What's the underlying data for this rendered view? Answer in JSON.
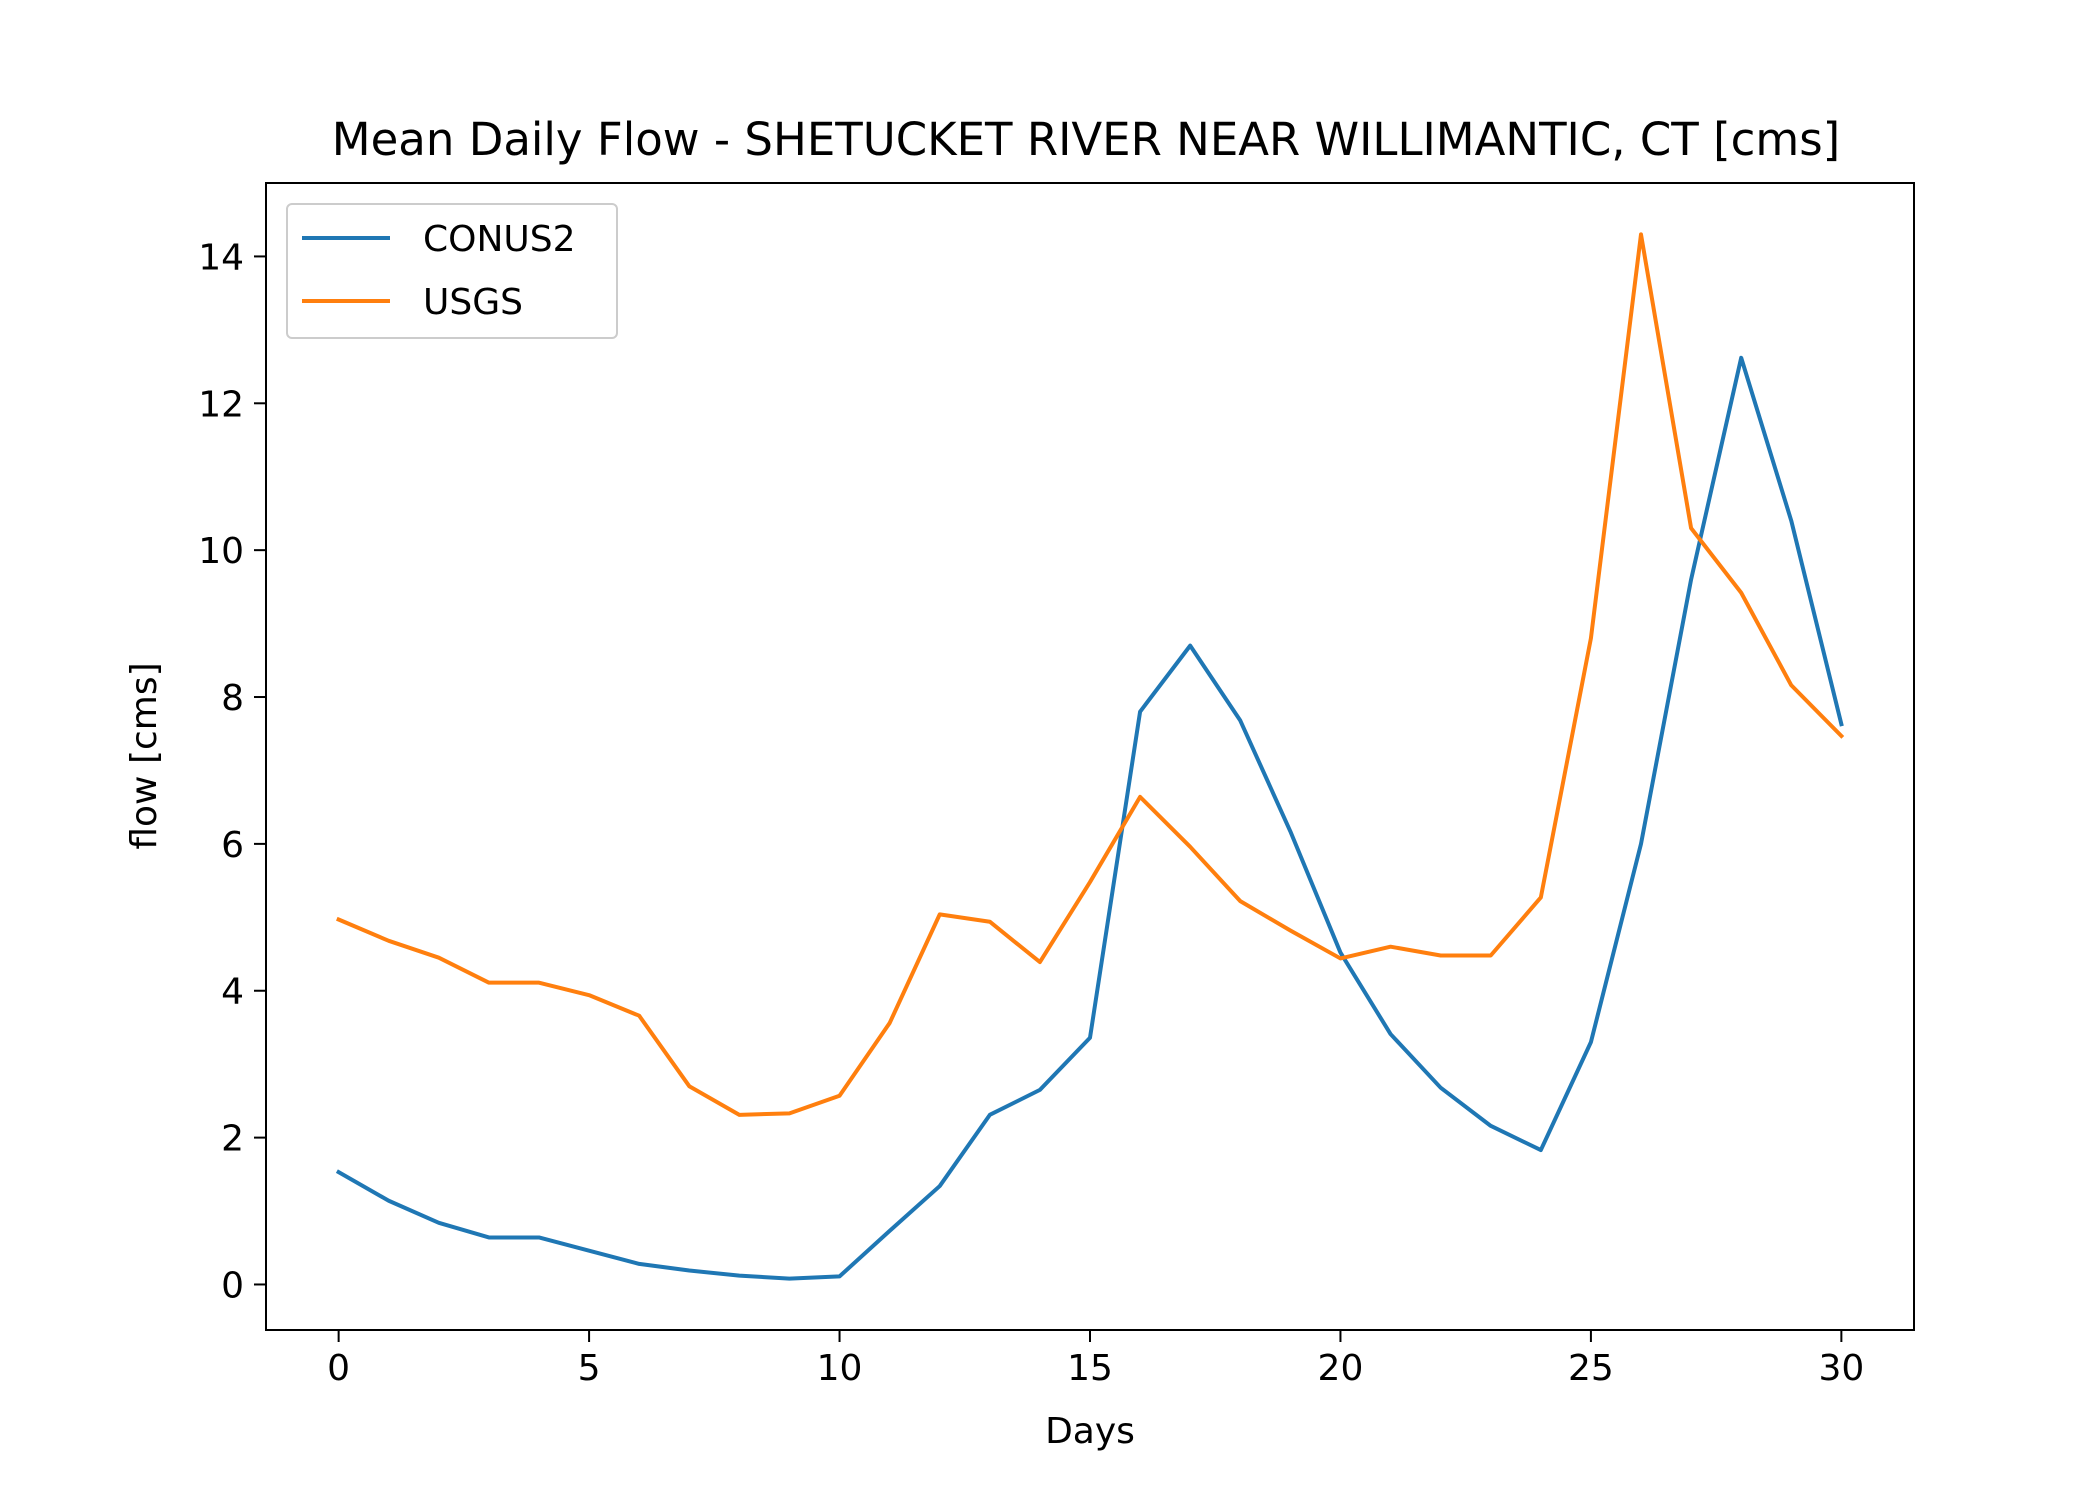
{
  "chart_data": {
    "type": "line",
    "title": "Mean Daily Flow - SHETUCKET RIVER NEAR WILLIMANTIC, CT [cms]",
    "xlabel": "Days",
    "ylabel": "flow [cms]",
    "xlim": [
      -1.45,
      31.45
    ],
    "ylim": [
      -0.62,
      15.0
    ],
    "xticks": [
      0,
      5,
      10,
      15,
      20,
      25,
      30
    ],
    "yticks": [
      0,
      2,
      4,
      6,
      8,
      10,
      12,
      14
    ],
    "grid": false,
    "legend_position": "top-left",
    "x": [
      0,
      1,
      2,
      3,
      4,
      5,
      6,
      7,
      8,
      9,
      10,
      11,
      12,
      13,
      14,
      15,
      16,
      17,
      18,
      19,
      20,
      21,
      22,
      23,
      24,
      25,
      26,
      27,
      28,
      29,
      30
    ],
    "series": [
      {
        "name": "CONUS2",
        "color": "#1f77b4",
        "values": [
          1.53,
          1.14,
          0.84,
          0.64,
          0.64,
          0.46,
          0.28,
          0.19,
          0.12,
          0.08,
          0.11,
          0.73,
          1.34,
          2.31,
          2.65,
          3.36,
          7.8,
          8.7,
          7.68,
          6.17,
          4.52,
          3.41,
          2.68,
          2.16,
          1.83,
          3.3,
          6.0,
          9.6,
          12.62,
          10.4,
          7.63
        ]
      },
      {
        "name": "USGS",
        "color": "#ff7f0e",
        "values": [
          4.97,
          4.68,
          4.45,
          4.11,
          4.11,
          3.94,
          3.66,
          2.7,
          2.31,
          2.33,
          2.57,
          3.56,
          5.04,
          4.94,
          4.39,
          5.48,
          6.64,
          5.96,
          5.22,
          4.82,
          4.44,
          4.6,
          4.48,
          4.48,
          5.27,
          8.8,
          14.3,
          10.3,
          9.42,
          8.16,
          7.47
        ]
      }
    ]
  }
}
